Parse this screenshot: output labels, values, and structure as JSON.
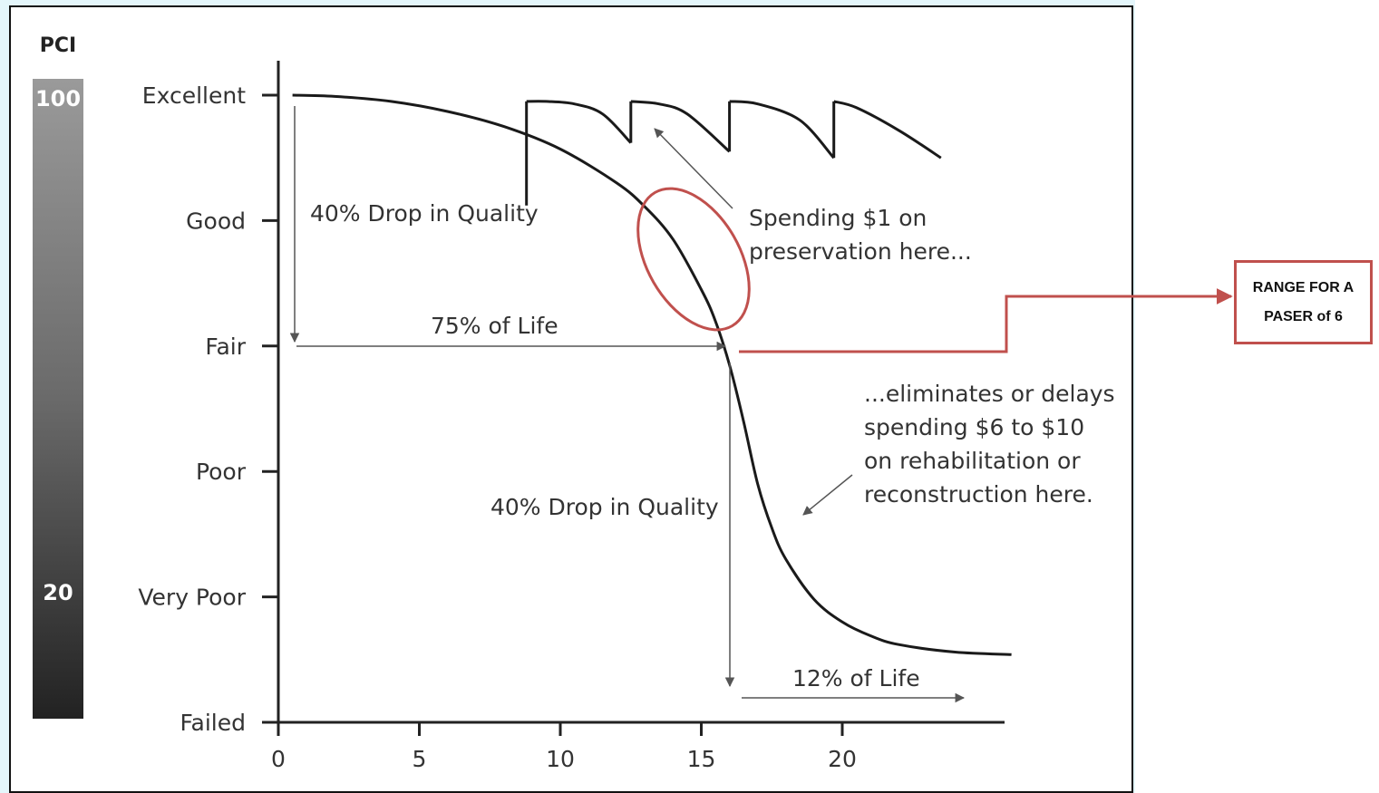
{
  "chart_data": {
    "type": "line",
    "scale_title": "PCI",
    "scale_ticks": [
      "100",
      "20"
    ],
    "y_categories": [
      "Excellent",
      "Good",
      "Fair",
      "Poor",
      "Very Poor",
      "Failed"
    ],
    "x_ticks": [
      "0",
      "5",
      "10",
      "15",
      "20"
    ],
    "xlim": [
      0,
      26
    ],
    "deterioration_curve": {
      "x": [
        0.5,
        2,
        4,
        6,
        8,
        10,
        12,
        13,
        14,
        15,
        15.5,
        16,
        16.5,
        17,
        17.5,
        18,
        19,
        20,
        21,
        22,
        24,
        26
      ],
      "y_level": [
        5,
        4.99,
        4.95,
        4.87,
        4.75,
        4.57,
        4.3,
        4.11,
        3.85,
        3.45,
        3.2,
        2.85,
        2.4,
        1.9,
        1.55,
        1.3,
        0.98,
        0.8,
        0.69,
        0.62,
        0.56,
        0.54
      ]
    },
    "preservation_curve": {
      "x": [
        8.8,
        8.8,
        9.5,
        10.5,
        11.5,
        12.5,
        12.5,
        13.5,
        14.5,
        16,
        16,
        17,
        18.5,
        19.7,
        19.7,
        20.5,
        22,
        23.5
      ],
      "y_level": [
        4.12,
        4.95,
        4.95,
        4.93,
        4.85,
        4.62,
        4.95,
        4.93,
        4.85,
        4.55,
        4.95,
        4.93,
        4.8,
        4.5,
        4.95,
        4.9,
        4.72,
        4.5
      ]
    },
    "annotations": {
      "drop1": "40% Drop in Quality",
      "life75": "75% of Life",
      "drop2": "40% Drop in Quality",
      "life12": "12% of Life",
      "spend1_line1": "Spending $1 on",
      "spend1_line2": "preservation here...",
      "elim_line1": "...eliminates or delays",
      "elim_line2": "spending $6 to $10",
      "elim_line3": "on rehabilitation or",
      "elim_line4": "reconstruction here."
    },
    "callout": "RANGE FOR A\nPASER of 6",
    "colors": {
      "curve": "#1a1a1a",
      "arrows": "#555555",
      "highlight": "#c0504d"
    }
  }
}
